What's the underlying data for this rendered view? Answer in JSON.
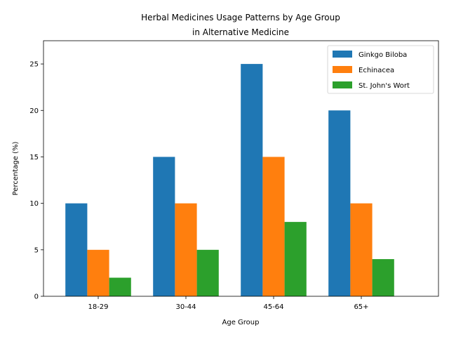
{
  "chart_data": {
    "type": "bar",
    "title_line1": "Herbal Medicines Usage Patterns by Age Group",
    "title_line2": "in Alternative Medicine",
    "xlabel": "Age Group",
    "ylabel": "Percentage (%)",
    "categories": [
      "18-29",
      "30-44",
      "45-64",
      "65+"
    ],
    "series": [
      {
        "name": "Ginkgo Biloba",
        "values": [
          10,
          15,
          25,
          20
        ],
        "color": "#1f77b4"
      },
      {
        "name": "Echinacea",
        "values": [
          5,
          10,
          15,
          10
        ],
        "color": "#ff7f0e"
      },
      {
        "name": "St. John's Wort",
        "values": [
          2,
          5,
          8,
          4
        ],
        "color": "#2ca02c"
      }
    ],
    "ylim": [
      0,
      27.5
    ],
    "yticks": [
      0,
      5,
      10,
      15,
      20,
      25
    ],
    "grid": false,
    "legend_position": "top-right"
  }
}
